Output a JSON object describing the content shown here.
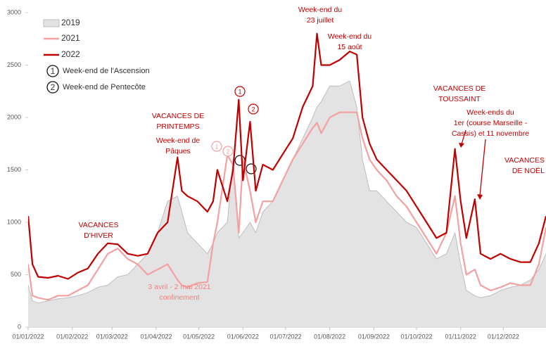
{
  "chart_data": {
    "type": "line",
    "x": [
      0,
      3,
      7,
      14,
      21,
      28,
      35,
      42,
      49,
      56,
      63,
      70,
      77,
      84,
      91,
      98,
      105,
      108,
      112,
      119,
      126,
      130,
      133,
      140,
      144,
      148,
      151,
      156,
      160,
      165,
      172,
      179,
      186,
      193,
      200,
      203,
      206,
      212,
      219,
      226,
      231,
      235,
      240,
      245,
      252,
      259,
      266,
      273,
      280,
      287,
      294,
      300,
      304,
      308,
      314,
      318,
      325,
      332,
      339,
      346,
      353,
      359,
      364
    ],
    "series": [
      {
        "name": "2019",
        "color": "#bdbdbd",
        "fill": "#e3e3e3",
        "area": true,
        "values": [
          400,
          250,
          230,
          250,
          270,
          280,
          300,
          330,
          380,
          400,
          480,
          500,
          600,
          700,
          900,
          1200,
          1250,
          1100,
          900,
          800,
          700,
          800,
          900,
          1000,
          1600,
          850,
          900,
          1000,
          900,
          1100,
          1200,
          1400,
          1600,
          1800,
          2000,
          2100,
          2150,
          2300,
          2300,
          2350,
          2100,
          1600,
          1300,
          1300,
          1200,
          1100,
          1000,
          950,
          800,
          650,
          700,
          900,
          600,
          350,
          300,
          280,
          300,
          350,
          380,
          400,
          450,
          550,
          700
        ]
      },
      {
        "name": "2021",
        "color": "#f4a0a0",
        "values": [
          600,
          300,
          280,
          260,
          300,
          300,
          350,
          400,
          550,
          700,
          750,
          650,
          600,
          500,
          550,
          600,
          450,
          400,
          380,
          420,
          430,
          800,
          1000,
          1640,
          1550,
          900,
          1600,
          1300,
          1000,
          1200,
          1200,
          1400,
          1600,
          1750,
          1900,
          1950,
          1850,
          2000,
          2050,
          2050,
          2050,
          1800,
          1600,
          1500,
          1400,
          1250,
          1150,
          1000,
          850,
          700,
          900,
          1250,
          800,
          500,
          550,
          400,
          350,
          380,
          420,
          400,
          400,
          600,
          950
        ]
      },
      {
        "name": "2022",
        "color": "#c00000",
        "values": [
          1060,
          600,
          480,
          470,
          490,
          460,
          520,
          560,
          700,
          800,
          790,
          700,
          680,
          700,
          900,
          1000,
          1620,
          1300,
          1250,
          1200,
          1100,
          1200,
          1500,
          1200,
          1500,
          2170,
          1400,
          1960,
          1300,
          1550,
          1500,
          1650,
          1800,
          2100,
          2300,
          2800,
          2500,
          2500,
          2550,
          2630,
          2600,
          2000,
          1750,
          1600,
          1500,
          1400,
          1300,
          1150,
          1000,
          850,
          900,
          1700,
          1200,
          850,
          1220,
          700,
          650,
          700,
          650,
          620,
          620,
          800,
          1060
        ]
      }
    ],
    "xlim": [
      0,
      364
    ],
    "xticks": [
      {
        "value": 0,
        "label": "01/01/2022"
      },
      {
        "value": 31,
        "label": "01/02/2022"
      },
      {
        "value": 59,
        "label": "01/03/2022"
      },
      {
        "value": 90,
        "label": "01/04/2022"
      },
      {
        "value": 120,
        "label": "01/05/2022"
      },
      {
        "value": 151,
        "label": "01/06/2022"
      },
      {
        "value": 181,
        "label": "01/07/2022"
      },
      {
        "value": 212,
        "label": "01/08/2022"
      },
      {
        "value": 243,
        "label": "01/09/2022"
      },
      {
        "value": 273,
        "label": "01/10/2022"
      },
      {
        "value": 304,
        "label": "01/11/2022"
      },
      {
        "value": 334,
        "label": "01/12/2022"
      }
    ],
    "ylim": [
      0,
      3000
    ],
    "yticks": [
      0,
      500,
      1000,
      1500,
      2000,
      2500,
      3000
    ],
    "legend_notes": [
      {
        "marker": "1",
        "label": "Week-end de l'Ascension"
      },
      {
        "marker": "2",
        "label": "Week-end de Pentecôte"
      }
    ],
    "markers": [
      {
        "label": "1",
        "color": "#f4a0a0"
      },
      {
        "label": "2",
        "color": "#f4a0a0"
      },
      {
        "label": "1",
        "color": "#c00000"
      },
      {
        "label": "2",
        "color": "#c00000"
      }
    ],
    "annotations": [
      {
        "lines": [
          "Week-end du",
          "23 juillet"
        ],
        "color": "#c00000"
      },
      {
        "lines": [
          "Week-end du",
          "15 août"
        ],
        "color": "#c00000"
      },
      {
        "lines": [
          "VACANCES DE",
          "PRINTEMPS"
        ],
        "color": "#c00000"
      },
      {
        "lines": [
          "Week-end de",
          "Pâques"
        ],
        "color": "#c00000"
      },
      {
        "lines": [
          "VACANCES",
          "D'HIVER"
        ],
        "color": "#c00000"
      },
      {
        "lines": [
          "3 avril - 2 mai 2021",
          "confinement"
        ],
        "color": "#f08080"
      },
      {
        "lines": [
          "VACANCES DE",
          "TOUSSAINT"
        ],
        "color": "#c00000"
      },
      {
        "lines": [
          "Week-ends du",
          "1er (course Marseille -",
          "Cassis) et 11 novembre"
        ],
        "color": "#c00000"
      },
      {
        "lines": [
          "VACANCES",
          "DE NOËL"
        ],
        "color": "#c00000"
      }
    ]
  }
}
